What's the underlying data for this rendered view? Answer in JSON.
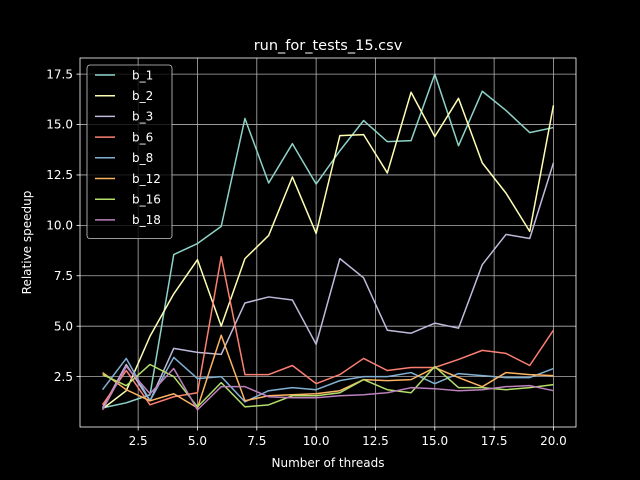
{
  "chart_data": {
    "type": "line",
    "title": "run_for_tests_15.csv",
    "xlabel": "Number of threads",
    "ylabel": "Relative speedup",
    "xlim": [
      0.05,
      20.95
    ],
    "ylim": [
      0.0,
      18.3
    ],
    "xticks": [
      2.5,
      5.0,
      7.5,
      10.0,
      12.5,
      15.0,
      17.5,
      20.0
    ],
    "xtick_labels": [
      "2.5",
      "5.0",
      "7.5",
      "10.0",
      "12.5",
      "15.0",
      "17.5",
      "20.0"
    ],
    "yticks": [
      2.5,
      5.0,
      7.5,
      10.0,
      12.5,
      15.0,
      17.5
    ],
    "ytick_labels": [
      "2.5",
      "5.0",
      "7.5",
      "10.0",
      "12.5",
      "15.0",
      "17.5"
    ],
    "grid": true,
    "legend_position": "top-left",
    "x": [
      1,
      2,
      3,
      4,
      5,
      6,
      7,
      8,
      9,
      10,
      11,
      12,
      13,
      14,
      15,
      16,
      17,
      18,
      19,
      20
    ],
    "series": [
      {
        "name": "b_1",
        "color": "#8dd3c7",
        "values": [
          0.95,
          1.2,
          1.6,
          8.55,
          9.1,
          9.95,
          15.3,
          12.1,
          14.05,
          12.05,
          13.7,
          15.2,
          14.15,
          14.2,
          17.5,
          13.95,
          16.65,
          15.7,
          14.6,
          14.85
        ]
      },
      {
        "name": "b_2",
        "color": "#ffffb3",
        "values": [
          0.9,
          1.8,
          4.5,
          6.6,
          8.3,
          5.0,
          8.35,
          9.5,
          12.4,
          9.6,
          14.45,
          14.5,
          12.6,
          16.6,
          14.4,
          16.3,
          13.1,
          11.6,
          9.7,
          15.95
        ]
      },
      {
        "name": "b_3",
        "color": "#bebada",
        "values": [
          0.95,
          3.1,
          1.3,
          3.9,
          3.7,
          3.6,
          6.15,
          6.45,
          6.3,
          4.1,
          8.35,
          7.4,
          4.8,
          4.65,
          5.15,
          4.9,
          8.05,
          9.55,
          9.35,
          13.1
        ]
      },
      {
        "name": "b_6",
        "color": "#fb8072",
        "values": [
          1.1,
          2.8,
          1.1,
          1.5,
          1.7,
          8.45,
          2.6,
          2.6,
          3.05,
          2.15,
          2.6,
          3.4,
          2.8,
          2.95,
          2.95,
          3.35,
          3.8,
          3.65,
          3.05,
          4.8
        ]
      },
      {
        "name": "b_8",
        "color": "#80b1d3",
        "values": [
          1.85,
          3.4,
          1.3,
          3.45,
          2.4,
          2.5,
          1.25,
          1.8,
          1.95,
          1.85,
          2.3,
          2.5,
          2.5,
          2.7,
          2.15,
          2.65,
          2.55,
          2.45,
          2.45,
          2.9
        ]
      },
      {
        "name": "b_12",
        "color": "#fdb462",
        "values": [
          2.7,
          1.85,
          1.3,
          1.65,
          0.95,
          4.55,
          1.3,
          1.55,
          1.6,
          1.65,
          1.8,
          2.35,
          2.3,
          2.35,
          2.95,
          2.45,
          2.0,
          2.7,
          2.6,
          2.55
        ]
      },
      {
        "name": "b_16",
        "color": "#b3de69",
        "values": [
          2.6,
          2.05,
          3.1,
          2.5,
          1.0,
          2.2,
          1.0,
          1.1,
          1.55,
          1.55,
          1.7,
          2.35,
          1.85,
          1.7,
          3.0,
          1.95,
          1.95,
          1.85,
          1.95,
          2.1
        ]
      },
      {
        "name": "b_18",
        "color": "#bc80bd",
        "values": [
          0.85,
          3.0,
          1.65,
          2.9,
          0.85,
          2.0,
          2.0,
          1.5,
          1.45,
          1.45,
          1.55,
          1.6,
          1.7,
          1.95,
          1.9,
          1.8,
          1.85,
          2.0,
          2.05,
          1.8
        ]
      }
    ]
  }
}
